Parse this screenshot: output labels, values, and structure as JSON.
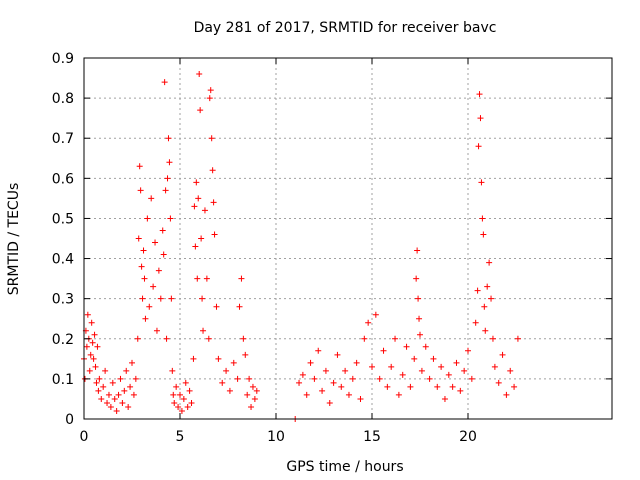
{
  "chart_data": {
    "type": "scatter",
    "title": "Day 281 of 2017, SRMTID for receiver bavc",
    "xlabel": "GPS time / hours",
    "ylabel": "SRMTID / TECUs",
    "xlim": [
      0,
      27.5
    ],
    "ylim": [
      0,
      0.9
    ],
    "xticks": [
      0,
      5,
      10,
      15,
      20
    ],
    "xtick_labels": [
      "0",
      "5",
      "10",
      "15",
      "20"
    ],
    "yticks": [
      0,
      0.1,
      0.2,
      0.3,
      0.4,
      0.5,
      0.6,
      0.7,
      0.8,
      0.9
    ],
    "ytick_labels": [
      "0",
      "0.1",
      "0.2",
      "0.3",
      "0.4",
      "0.5",
      "0.6",
      "0.7",
      "0.8",
      "0.9"
    ],
    "grid": true,
    "series": [
      {
        "name": "SRMTID",
        "marker": "+",
        "color": "#ff0000",
        "points": [
          [
            0.0,
            0.15
          ],
          [
            0.05,
            0.1
          ],
          [
            0.1,
            0.22
          ],
          [
            0.15,
            0.18
          ],
          [
            0.2,
            0.26
          ],
          [
            0.25,
            0.2
          ],
          [
            0.3,
            0.12
          ],
          [
            0.35,
            0.16
          ],
          [
            0.4,
            0.24
          ],
          [
            0.45,
            0.19
          ],
          [
            0.5,
            0.15
          ],
          [
            0.55,
            0.21
          ],
          [
            0.6,
            0.13
          ],
          [
            0.65,
            0.09
          ],
          [
            0.7,
            0.18
          ],
          [
            0.75,
            0.07
          ],
          [
            0.8,
            0.1
          ],
          [
            0.9,
            0.05
          ],
          [
            1.0,
            0.08
          ],
          [
            1.1,
            0.12
          ],
          [
            1.2,
            0.04
          ],
          [
            1.3,
            0.06
          ],
          [
            1.4,
            0.03
          ],
          [
            1.5,
            0.09
          ],
          [
            1.6,
            0.05
          ],
          [
            1.7,
            0.02
          ],
          [
            1.8,
            0.06
          ],
          [
            1.9,
            0.1
          ],
          [
            2.0,
            0.04
          ],
          [
            2.1,
            0.07
          ],
          [
            2.2,
            0.12
          ],
          [
            2.3,
            0.03
          ],
          [
            2.4,
            0.08
          ],
          [
            2.5,
            0.14
          ],
          [
            2.6,
            0.06
          ],
          [
            2.7,
            0.1
          ],
          [
            2.8,
            0.2
          ],
          [
            2.85,
            0.45
          ],
          [
            2.9,
            0.63
          ],
          [
            2.95,
            0.57
          ],
          [
            3.0,
            0.38
          ],
          [
            3.05,
            0.3
          ],
          [
            3.1,
            0.42
          ],
          [
            3.15,
            0.35
          ],
          [
            3.2,
            0.25
          ],
          [
            3.3,
            0.5
          ],
          [
            3.4,
            0.28
          ],
          [
            3.5,
            0.55
          ],
          [
            3.6,
            0.33
          ],
          [
            3.7,
            0.44
          ],
          [
            3.8,
            0.22
          ],
          [
            3.9,
            0.37
          ],
          [
            4.0,
            0.3
          ],
          [
            4.1,
            0.47
          ],
          [
            4.15,
            0.41
          ],
          [
            4.2,
            0.84
          ],
          [
            4.25,
            0.57
          ],
          [
            4.3,
            0.2
          ],
          [
            4.35,
            0.6
          ],
          [
            4.4,
            0.7
          ],
          [
            4.45,
            0.64
          ],
          [
            4.5,
            0.5
          ],
          [
            4.55,
            0.3
          ],
          [
            4.6,
            0.12
          ],
          [
            4.65,
            0.06
          ],
          [
            4.7,
            0.04
          ],
          [
            4.8,
            0.08
          ],
          [
            4.9,
            0.03
          ],
          [
            5.0,
            0.06
          ],
          [
            5.1,
            0.02
          ],
          [
            5.2,
            0.05
          ],
          [
            5.3,
            0.09
          ],
          [
            5.4,
            0.03
          ],
          [
            5.5,
            0.07
          ],
          [
            5.6,
            0.04
          ],
          [
            5.7,
            0.15
          ],
          [
            5.75,
            0.53
          ],
          [
            5.8,
            0.43
          ],
          [
            5.85,
            0.59
          ],
          [
            5.9,
            0.35
          ],
          [
            5.95,
            0.55
          ],
          [
            6.0,
            0.86
          ],
          [
            6.05,
            0.77
          ],
          [
            6.1,
            0.45
          ],
          [
            6.15,
            0.3
          ],
          [
            6.2,
            0.22
          ],
          [
            6.3,
            0.52
          ],
          [
            6.4,
            0.35
          ],
          [
            6.5,
            0.2
          ],
          [
            6.55,
            0.8
          ],
          [
            6.6,
            0.82
          ],
          [
            6.65,
            0.7
          ],
          [
            6.7,
            0.62
          ],
          [
            6.75,
            0.54
          ],
          [
            6.8,
            0.46
          ],
          [
            6.9,
            0.28
          ],
          [
            7.0,
            0.15
          ],
          [
            7.2,
            0.09
          ],
          [
            7.4,
            0.12
          ],
          [
            7.6,
            0.07
          ],
          [
            7.8,
            0.14
          ],
          [
            8.0,
            0.1
          ],
          [
            8.1,
            0.28
          ],
          [
            8.2,
            0.35
          ],
          [
            8.3,
            0.2
          ],
          [
            8.4,
            0.16
          ],
          [
            8.5,
            0.06
          ],
          [
            8.6,
            0.1
          ],
          [
            8.7,
            0.03
          ],
          [
            8.8,
            0.08
          ],
          [
            8.9,
            0.05
          ],
          [
            9.0,
            0.07
          ],
          [
            11.0,
            0.0
          ],
          [
            11.2,
            0.09
          ],
          [
            11.4,
            0.11
          ],
          [
            11.6,
            0.06
          ],
          [
            11.8,
            0.14
          ],
          [
            12.0,
            0.1
          ],
          [
            12.2,
            0.17
          ],
          [
            12.4,
            0.07
          ],
          [
            12.6,
            0.12
          ],
          [
            12.8,
            0.04
          ],
          [
            13.0,
            0.09
          ],
          [
            13.2,
            0.16
          ],
          [
            13.4,
            0.08
          ],
          [
            13.6,
            0.12
          ],
          [
            13.8,
            0.06
          ],
          [
            14.0,
            0.1
          ],
          [
            14.2,
            0.14
          ],
          [
            14.4,
            0.05
          ],
          [
            14.6,
            0.2
          ],
          [
            14.8,
            0.24
          ],
          [
            15.0,
            0.13
          ],
          [
            15.2,
            0.26
          ],
          [
            15.4,
            0.1
          ],
          [
            15.6,
            0.17
          ],
          [
            15.8,
            0.08
          ],
          [
            16.0,
            0.13
          ],
          [
            16.2,
            0.2
          ],
          [
            16.4,
            0.06
          ],
          [
            16.6,
            0.11
          ],
          [
            16.8,
            0.18
          ],
          [
            17.0,
            0.08
          ],
          [
            17.2,
            0.15
          ],
          [
            17.3,
            0.35
          ],
          [
            17.35,
            0.42
          ],
          [
            17.4,
            0.3
          ],
          [
            17.45,
            0.25
          ],
          [
            17.5,
            0.21
          ],
          [
            17.6,
            0.12
          ],
          [
            17.8,
            0.18
          ],
          [
            18.0,
            0.1
          ],
          [
            18.2,
            0.15
          ],
          [
            18.4,
            0.08
          ],
          [
            18.6,
            0.13
          ],
          [
            18.8,
            0.05
          ],
          [
            19.0,
            0.11
          ],
          [
            19.2,
            0.08
          ],
          [
            19.4,
            0.14
          ],
          [
            19.6,
            0.07
          ],
          [
            19.8,
            0.12
          ],
          [
            20.0,
            0.17
          ],
          [
            20.2,
            0.1
          ],
          [
            20.4,
            0.24
          ],
          [
            20.5,
            0.32
          ],
          [
            20.55,
            0.68
          ],
          [
            20.6,
            0.81
          ],
          [
            20.65,
            0.75
          ],
          [
            20.7,
            0.59
          ],
          [
            20.75,
            0.5
          ],
          [
            20.8,
            0.46
          ],
          [
            20.85,
            0.28
          ],
          [
            20.9,
            0.22
          ],
          [
            21.0,
            0.33
          ],
          [
            21.1,
            0.39
          ],
          [
            21.2,
            0.3
          ],
          [
            21.3,
            0.2
          ],
          [
            21.4,
            0.13
          ],
          [
            21.6,
            0.09
          ],
          [
            21.8,
            0.16
          ],
          [
            22.0,
            0.06
          ],
          [
            22.2,
            0.12
          ],
          [
            22.4,
            0.08
          ],
          [
            22.6,
            0.2
          ]
        ]
      }
    ]
  }
}
